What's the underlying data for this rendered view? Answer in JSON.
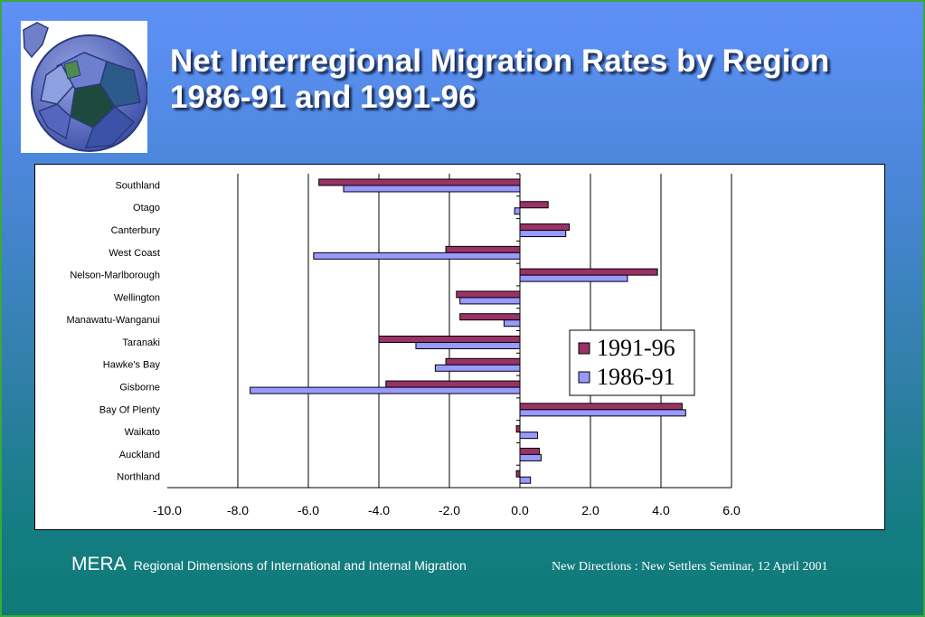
{
  "title": {
    "line1": "Net Interregional Migration Rates by Region",
    "line2": "1986-91 and 1991-96"
  },
  "logo": {
    "icon": "globe-puzzle-icon"
  },
  "chart_data": {
    "type": "bar",
    "orientation": "horizontal",
    "categories": [
      "Southland",
      "Otago",
      "Canterbury",
      "West Coast",
      "Nelson-Marlborough",
      "Wellington",
      "Manawatu-Wanganui",
      "Taranaki",
      "Hawke's Bay",
      "Gisborne",
      "Bay Of Plenty",
      "Waikato",
      "Auckland",
      "Northland"
    ],
    "series": [
      {
        "name": "1991-96",
        "color": "#993366",
        "values": [
          -5.7,
          0.8,
          1.4,
          -2.1,
          3.9,
          -1.8,
          -1.7,
          -4.0,
          -2.1,
          -3.8,
          4.6,
          -0.1,
          0.55,
          -0.1
        ]
      },
      {
        "name": "1986-91",
        "color": "#9999ff",
        "values": [
          -5.0,
          -0.15,
          1.3,
          -5.85,
          3.05,
          -1.7,
          -0.45,
          -2.95,
          -2.4,
          -7.65,
          4.7,
          0.5,
          0.6,
          0.3
        ]
      }
    ],
    "xlim": [
      -10,
      6
    ],
    "xticks": [
      "-10.0",
      "-8.0",
      "-6.0",
      "-4.0",
      "-2.0",
      "0.0",
      "2.0",
      "4.0",
      "6.0"
    ],
    "grid": true,
    "legend": "right-center"
  },
  "footer": {
    "mera": "MERA",
    "subtitle": "Regional Dimensions of International and Internal Migration",
    "right": "New Directions : New Settlers Seminar, 12 April 2001"
  }
}
